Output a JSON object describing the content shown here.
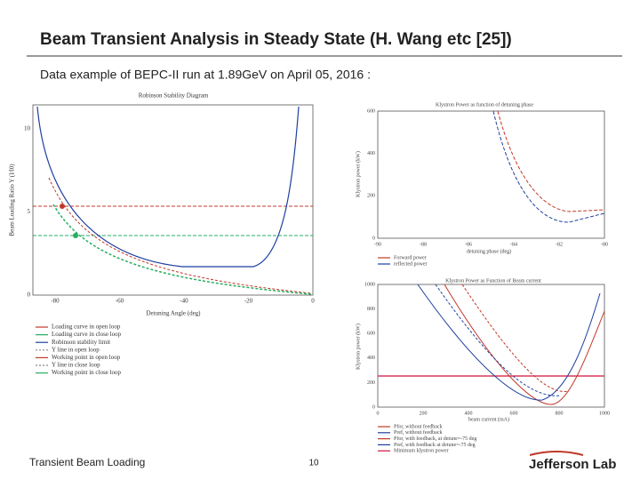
{
  "header": {
    "title": "Beam Transient Analysis in Steady State (H. Wang etc [25])",
    "subtitle": "Data example of BEPC-II run at 1.89GeV on April 05, 2016 :"
  },
  "figures": [
    {
      "title": "Robinson Stability Diagram",
      "x_label": "Detuning Angle (deg)",
      "y_label": "Beam Loading Ratio Y (I/I0)",
      "x_ticks": [
        "-80",
        "-60",
        "-40",
        "-20",
        "0"
      ],
      "y_ticks": [
        "0",
        "5",
        "10"
      ],
      "legend": [
        "Loading curve in open loop",
        "Loading curve in close loop",
        "Robinson stability limit",
        "Y line in open loop",
        "Working point in open loop",
        "Y line in close loop",
        "Working point in close loop"
      ]
    },
    {
      "title": "Klystron Power as function of detuning phase",
      "x_label": "detuning phase (deg)",
      "y_label": "Klystron power (kW)",
      "x_ticks": [
        "-90",
        "-88",
        "-86",
        "-84",
        "-82",
        "-80"
      ],
      "y_ticks": [
        "0",
        "200",
        "400",
        "600"
      ],
      "legend": [
        "Forward power",
        "reflected power"
      ]
    },
    {
      "title": "Klystron Power as Function of Beam current",
      "x_label": "beam current (mA)",
      "y_label": "Klystron power (kW)",
      "x_ticks": [
        "0",
        "200",
        "400",
        "600",
        "800",
        "1000"
      ],
      "y_ticks": [
        "0",
        "200",
        "400",
        "600",
        "800",
        "1000"
      ],
      "legend": [
        "Pfor, without feedback",
        "Pref, without feedback",
        "Pfor, with feedback, at detune=-75 deg",
        "Pref, with feedback at detune=-75 deg",
        "Minimum klystron power"
      ]
    }
  ],
  "footer": {
    "left": "Transient Beam Loading",
    "page": "10",
    "logo": "Jefferson Lab"
  }
}
